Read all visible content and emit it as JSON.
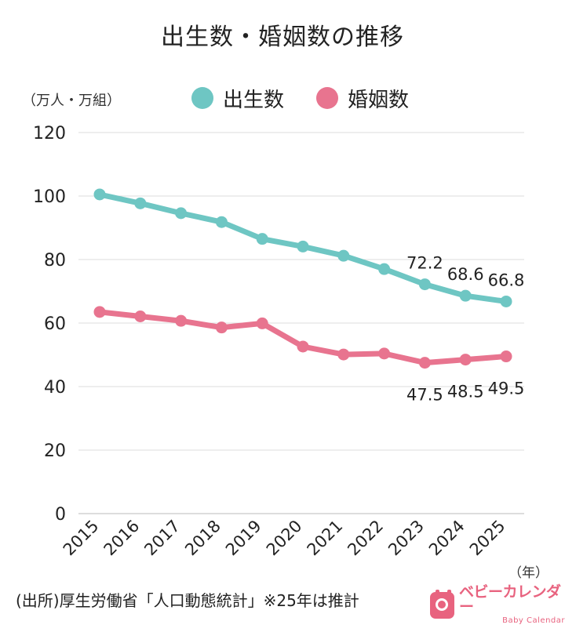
{
  "title": "出生数・婚姻数の推移",
  "unit_label": "（万人・万組）",
  "year_unit": "（年）",
  "source": "(出所)厚生労働省「人口動態統計」※25年は推計",
  "logo": {
    "main": "ベビーカレンダー",
    "sub": "Baby Calendar"
  },
  "colors": {
    "births": "#6ec6c3",
    "marriages": "#e8748f",
    "grid": "#dddddd",
    "text": "#222222",
    "brand": "#e8637f"
  },
  "chart_data": {
    "type": "line",
    "title": "出生数・婚姻数の推移",
    "ylabel": "（万人・万組）",
    "xlabel": "（年）",
    "x": [
      "2015",
      "2016",
      "2017",
      "2018",
      "2019",
      "2020",
      "2021",
      "2022",
      "2023",
      "2024",
      "2025"
    ],
    "yticks": [
      "0",
      "20",
      "40",
      "60",
      "80",
      "100",
      "120"
    ],
    "ylim": [
      0,
      120
    ],
    "grid": true,
    "legend_position": "top-center",
    "series": [
      {
        "name": "出生数",
        "color": "#6ec6c3",
        "values": [
          100.5,
          97.7,
          94.6,
          91.8,
          86.5,
          84.1,
          81.2,
          77.0,
          72.2,
          68.6,
          66.8
        ],
        "labels": [
          "",
          "",
          "",
          "",
          "",
          "",
          "",
          "",
          "72.2",
          "68.6",
          "66.8"
        ],
        "label_side": "above"
      },
      {
        "name": "婚姻数",
        "color": "#e8748f",
        "values": [
          63.5,
          62.1,
          60.7,
          58.6,
          59.9,
          52.6,
          50.1,
          50.4,
          47.5,
          48.5,
          49.5
        ],
        "labels": [
          "",
          "",
          "",
          "",
          "",
          "",
          "",
          "",
          "47.5",
          "48.5",
          "49.5"
        ],
        "label_side": "below"
      }
    ]
  }
}
